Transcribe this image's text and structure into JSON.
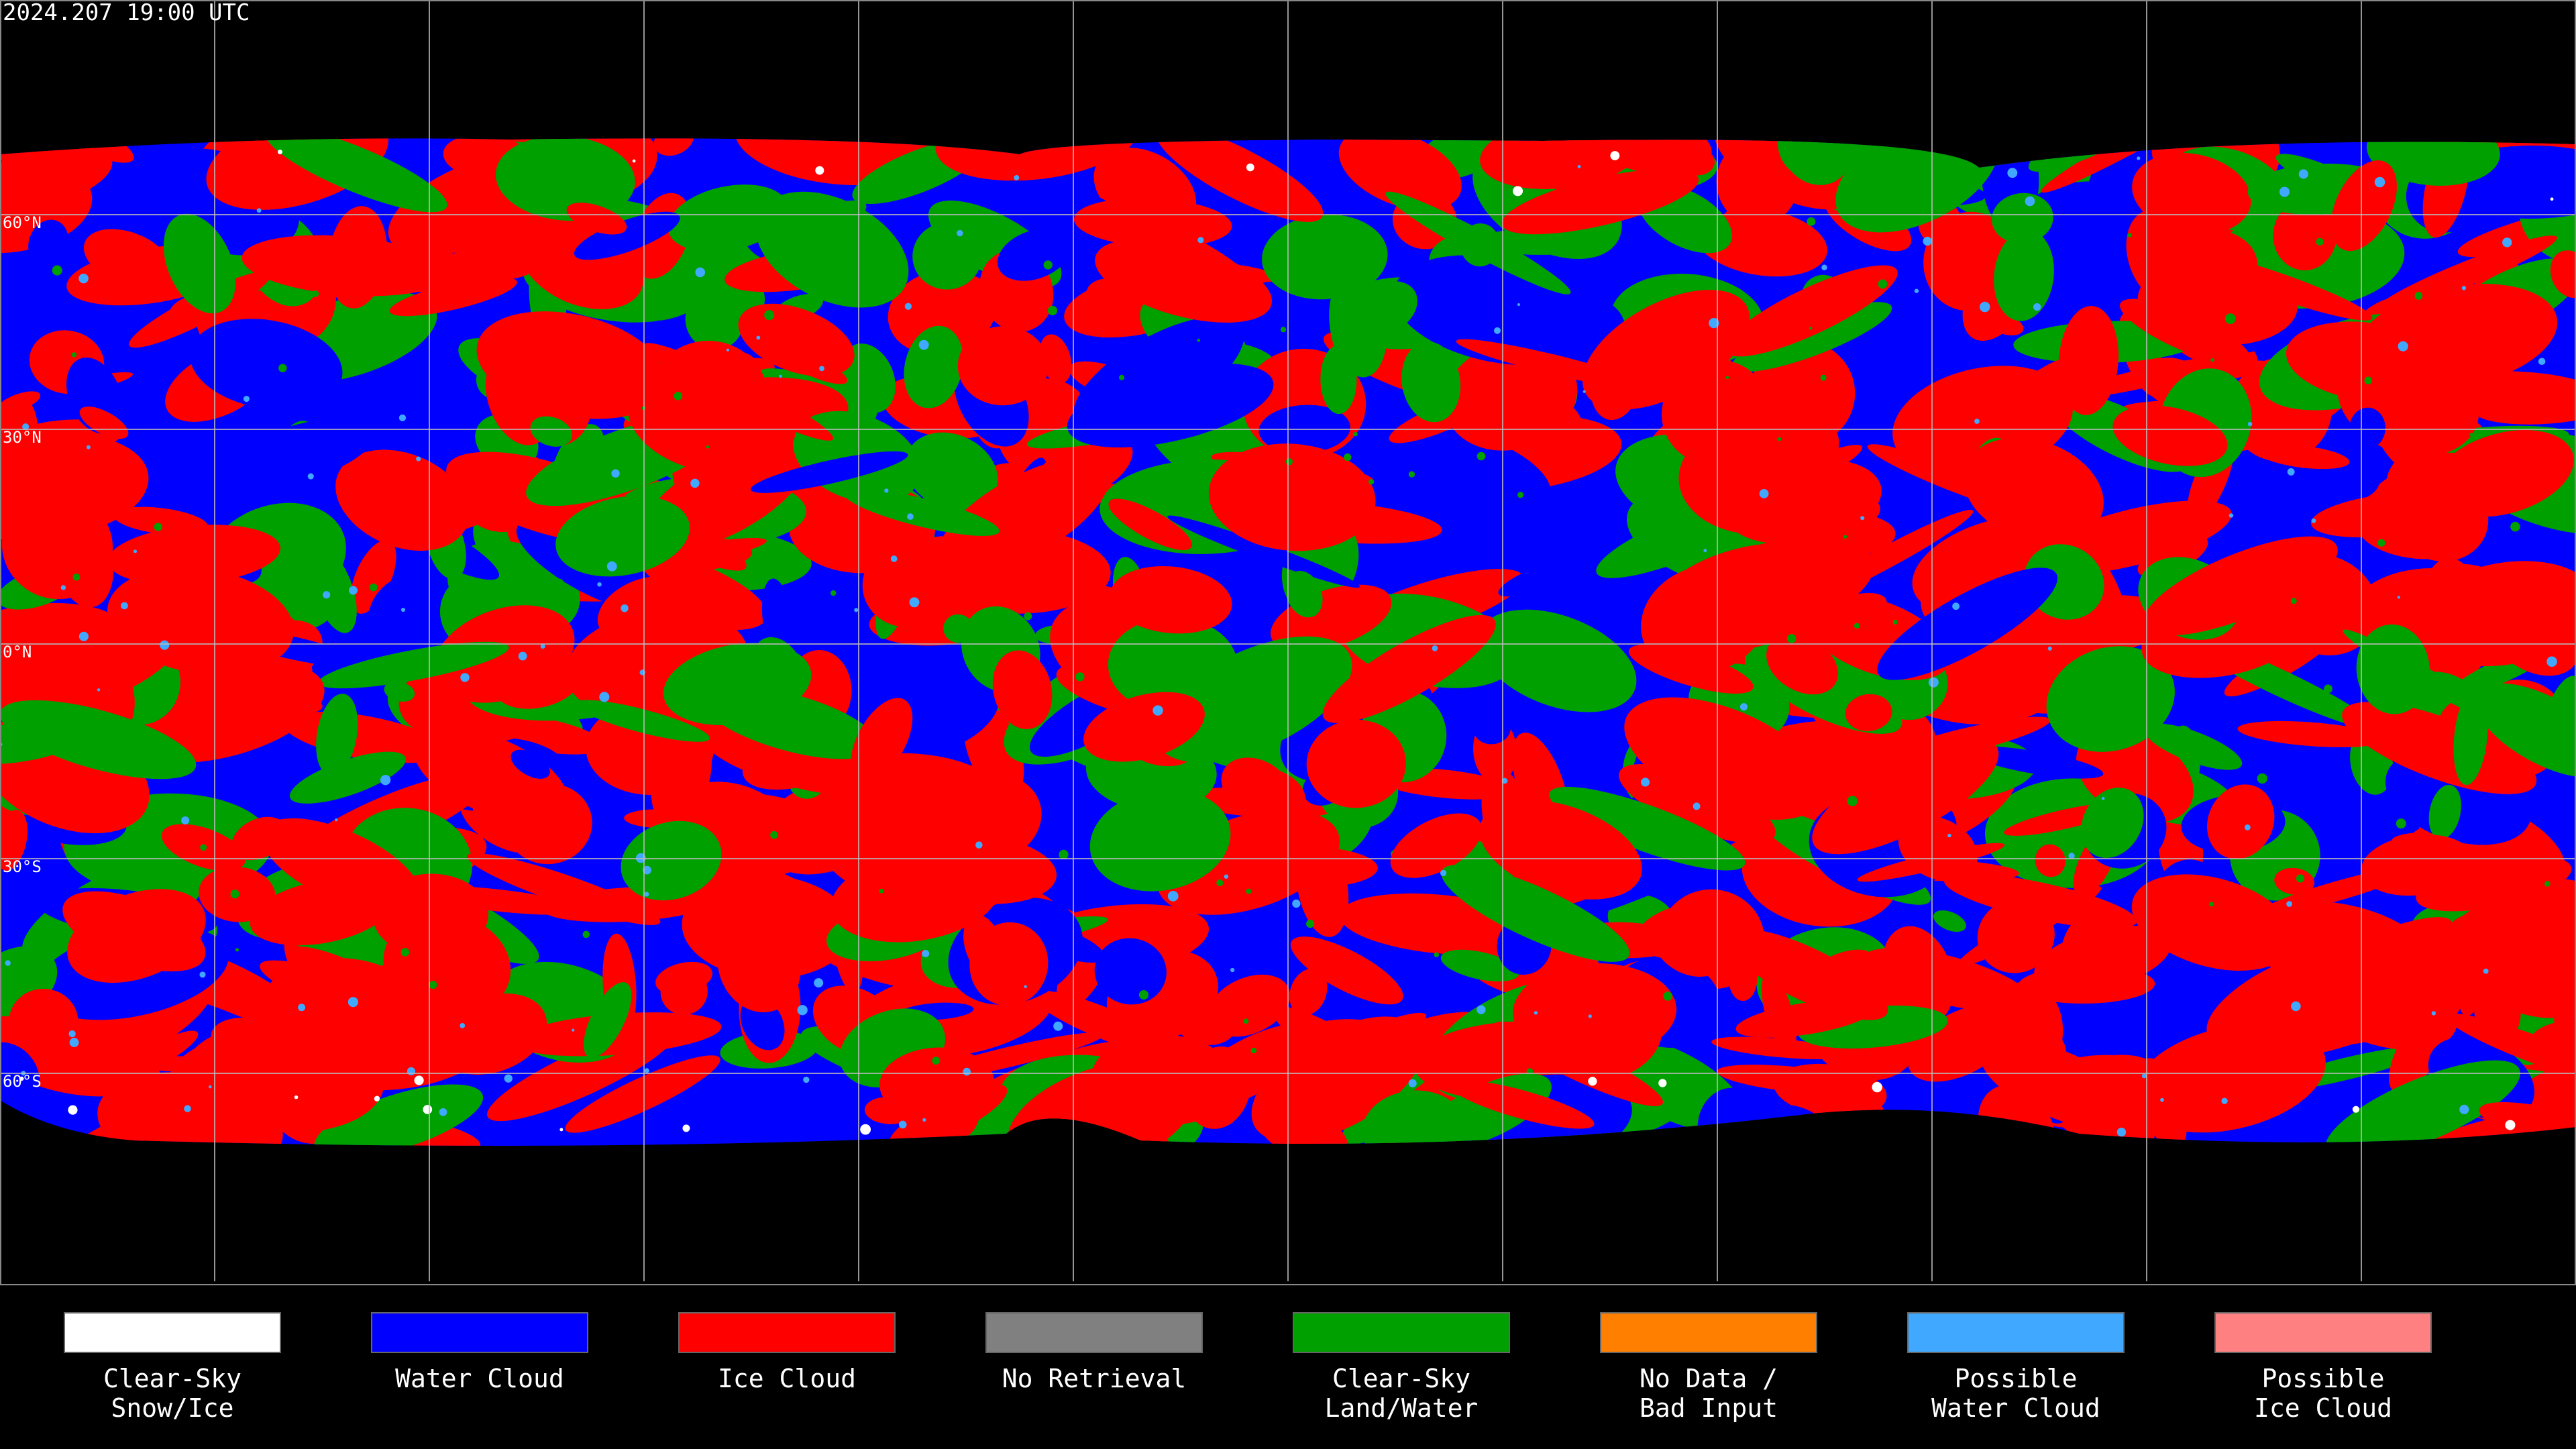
{
  "header": {
    "title": "2024.207 19:00 UTC"
  },
  "map": {
    "latitude_labels": [
      "60°N",
      "30°N",
      "0°N",
      "30°S",
      "60°S"
    ]
  },
  "legend": {
    "items": [
      {
        "lines": [
          "Clear-Sky",
          "Snow/Ice"
        ],
        "color": "#ffffff"
      },
      {
        "lines": [
          "Water Cloud"
        ],
        "color": "#0000ff"
      },
      {
        "lines": [
          "Ice Cloud"
        ],
        "color": "#ff0000"
      },
      {
        "lines": [
          "No Retrieval"
        ],
        "color": "#808080"
      },
      {
        "lines": [
          "Clear-Sky",
          "Land/Water"
        ],
        "color": "#00a000"
      },
      {
        "lines": [
          "No Data /",
          "Bad Input"
        ],
        "color": "#ff8000"
      },
      {
        "lines": [
          "Possible",
          "Water Cloud"
        ],
        "color": "#40a8ff"
      },
      {
        "lines": [
          "Possible",
          "Ice Cloud"
        ],
        "color": "#ff8080"
      }
    ]
  }
}
